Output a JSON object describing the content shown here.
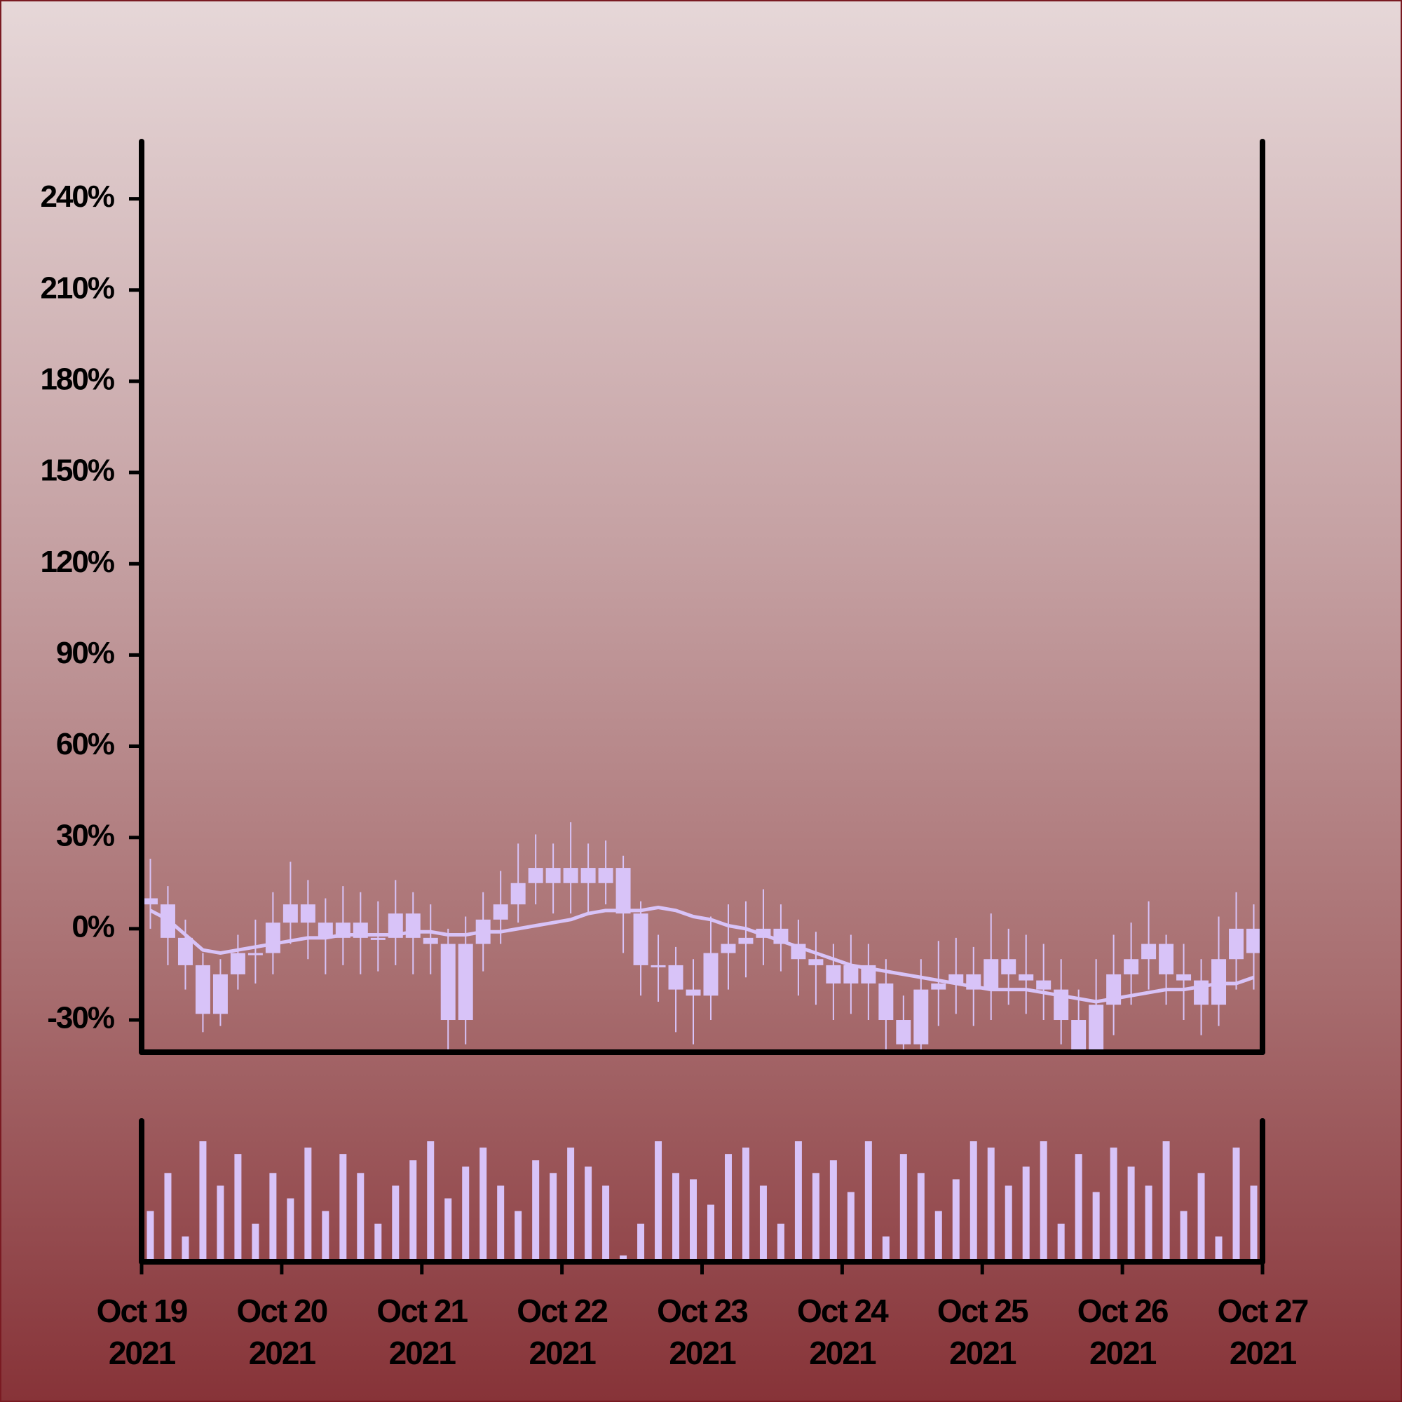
{
  "chart_data": {
    "type": "candlestick",
    "color": "#d8c3f8",
    "xlim": [
      "2021-10-19",
      "2021-10-27"
    ],
    "xticks": [
      {
        "value": "2021-10-19",
        "label": "Oct 19\n2021"
      },
      {
        "value": "2021-10-20",
        "label": "Oct 20\n2021"
      },
      {
        "value": "2021-10-21",
        "label": "Oct 21\n2021"
      },
      {
        "value": "2021-10-22",
        "label": "Oct 22\n2021"
      },
      {
        "value": "2021-10-23",
        "label": "Oct 23\n2021"
      },
      {
        "value": "2021-10-24",
        "label": "Oct 24\n2021"
      },
      {
        "value": "2021-10-25",
        "label": "Oct 25\n2021"
      },
      {
        "value": "2021-10-26",
        "label": "Oct 26\n2021"
      },
      {
        "value": "2021-10-27",
        "label": "Oct 27\n2021"
      }
    ],
    "ylim": [
      -40.6,
      258.8
    ],
    "yticks": [
      {
        "value": -30,
        "label": "-30%"
      },
      {
        "value": 0,
        "label": "0%"
      },
      {
        "value": 30,
        "label": "30%"
      },
      {
        "value": 60,
        "label": "60%"
      },
      {
        "value": 90,
        "label": "90%"
      },
      {
        "value": 120,
        "label": "120%"
      },
      {
        "value": 150,
        "label": "150%"
      },
      {
        "value": 180,
        "label": "180%"
      },
      {
        "value": 210,
        "label": "210%"
      },
      {
        "value": 240,
        "label": "240%"
      }
    ],
    "volume_ylim": [
      0,
      100
    ],
    "x": [
      "2021-10-19 01:30",
      "2021-10-19 04:30",
      "2021-10-19 07:30",
      "2021-10-19 10:30",
      "2021-10-19 13:30",
      "2021-10-19 16:30",
      "2021-10-19 19:30",
      "2021-10-19 22:30",
      "2021-10-20 01:30",
      "2021-10-20 04:30",
      "2021-10-20 07:30",
      "2021-10-20 10:30",
      "2021-10-20 13:30",
      "2021-10-20 16:30",
      "2021-10-20 19:30",
      "2021-10-20 22:30",
      "2021-10-21 01:30",
      "2021-10-21 04:30",
      "2021-10-21 07:30",
      "2021-10-21 10:30",
      "2021-10-21 13:30",
      "2021-10-21 16:30",
      "2021-10-21 19:30",
      "2021-10-21 22:30",
      "2021-10-22 01:30",
      "2021-10-22 04:30",
      "2021-10-22 07:30",
      "2021-10-22 10:30",
      "2021-10-22 13:30",
      "2021-10-22 16:30",
      "2021-10-22 19:30",
      "2021-10-22 22:30",
      "2021-10-23 01:30",
      "2021-10-23 04:30",
      "2021-10-23 07:30",
      "2021-10-23 10:30",
      "2021-10-23 13:30",
      "2021-10-23 16:30",
      "2021-10-23 19:30",
      "2021-10-23 22:30",
      "2021-10-24 01:30",
      "2021-10-24 04:30",
      "2021-10-24 07:30",
      "2021-10-24 10:30",
      "2021-10-24 13:30",
      "2021-10-24 16:30",
      "2021-10-24 19:30",
      "2021-10-24 22:30",
      "2021-10-25 01:30",
      "2021-10-25 04:30",
      "2021-10-25 07:30",
      "2021-10-25 10:30",
      "2021-10-25 13:30",
      "2021-10-25 16:30",
      "2021-10-25 19:30",
      "2021-10-25 22:30",
      "2021-10-26 01:30",
      "2021-10-26 04:30",
      "2021-10-26 07:30",
      "2021-10-26 10:30",
      "2021-10-26 13:30",
      "2021-10-26 16:30",
      "2021-10-26 19:30",
      "2021-10-26 22:30"
    ],
    "open": [
      10,
      8,
      -3,
      -12,
      -28,
      -15,
      -8,
      -8,
      2,
      8,
      2,
      -3,
      2,
      -3,
      -3,
      5,
      -3,
      -5,
      -30,
      -5,
      3,
      8,
      15,
      20,
      15,
      20,
      15,
      20,
      5,
      -12,
      -12,
      -20,
      -22,
      -8,
      -5,
      -3,
      0,
      -5,
      -10,
      -12,
      -18,
      -12,
      -18,
      -30,
      -38,
      -20,
      -18,
      -15,
      -20,
      -10,
      -15,
      -17,
      -20,
      -30,
      -40,
      -25,
      -15,
      -10,
      -5,
      -15,
      -17,
      -25,
      -10,
      0
    ],
    "high": [
      23,
      14,
      3,
      -8,
      -10,
      -2,
      3,
      12,
      22,
      16,
      10,
      14,
      12,
      9,
      16,
      12,
      8,
      0,
      4,
      12,
      19,
      28,
      31,
      28,
      35,
      28,
      29,
      24,
      9,
      -2,
      -6,
      -10,
      4,
      8,
      9,
      13,
      8,
      3,
      -1,
      -5,
      -2,
      -5,
      -10,
      -22,
      -10,
      -4,
      -3,
      -6,
      5,
      0,
      -2,
      -5,
      -10,
      -20,
      -10,
      -2,
      2,
      9,
      -2,
      -5,
      -10,
      4,
      12,
      8
    ],
    "low": [
      0,
      -12,
      -20,
      -34,
      -32,
      -20,
      -18,
      -15,
      -5,
      -10,
      -15,
      -12,
      -15,
      -14,
      -12,
      -15,
      -15,
      -40,
      -38,
      -14,
      -5,
      2,
      8,
      5,
      5,
      5,
      8,
      -8,
      -22,
      -24,
      -34,
      -38,
      -30,
      -20,
      -16,
      -12,
      -14,
      -22,
      -25,
      -30,
      -28,
      -30,
      -42,
      -48,
      -45,
      -32,
      -28,
      -32,
      -30,
      -25,
      -28,
      -30,
      -38,
      -50,
      -48,
      -35,
      -25,
      -20,
      -25,
      -30,
      -35,
      -32,
      -20,
      -20
    ],
    "close": [
      8,
      -3,
      -12,
      -28,
      -15,
      -8,
      -8,
      2,
      8,
      2,
      -3,
      2,
      -3,
      -3,
      5,
      -3,
      -5,
      -30,
      -5,
      3,
      8,
      15,
      20,
      15,
      20,
      15,
      20,
      5,
      -12,
      -12,
      -20,
      -22,
      -8,
      -5,
      -3,
      0,
      -5,
      -10,
      -12,
      -18,
      -12,
      -18,
      -30,
      -38,
      -20,
      -18,
      -15,
      -20,
      -10,
      -15,
      -17,
      -20,
      -30,
      -40,
      -25,
      -15,
      -10,
      -5,
      -15,
      -17,
      -25,
      -10,
      0,
      -8
    ],
    "moving_average": [
      6,
      3,
      -2,
      -7,
      -8,
      -7,
      -6,
      -5,
      -4,
      -3,
      -3,
      -2,
      -2,
      -2,
      -2,
      -1,
      -1,
      -2,
      -2,
      -1,
      -1,
      0,
      1,
      2,
      3,
      5,
      6,
      6,
      6,
      7,
      6,
      4,
      3,
      1,
      0,
      -2,
      -4,
      -6,
      -8,
      -10,
      -12,
      -13,
      -14,
      -15,
      -16,
      -17,
      -18,
      -19,
      -20,
      -20,
      -20,
      -21,
      -22,
      -23,
      -24,
      -23,
      -22,
      -21,
      -20,
      -20,
      -19,
      -18,
      -18,
      -16
    ],
    "volume": [
      40,
      70,
      20,
      95,
      60,
      85,
      30,
      70,
      50,
      90,
      40,
      85,
      70,
      30,
      60,
      80,
      95,
      50,
      75,
      90,
      60,
      40,
      80,
      70,
      90,
      75,
      60,
      5,
      30,
      95,
      70,
      65,
      45,
      85,
      90,
      60,
      30,
      95,
      70,
      80,
      55,
      95,
      20,
      85,
      70,
      40,
      65,
      95,
      90,
      60,
      75,
      95,
      30,
      85,
      55,
      90,
      75,
      60,
      95,
      40,
      70,
      20,
      90,
      60
    ]
  }
}
